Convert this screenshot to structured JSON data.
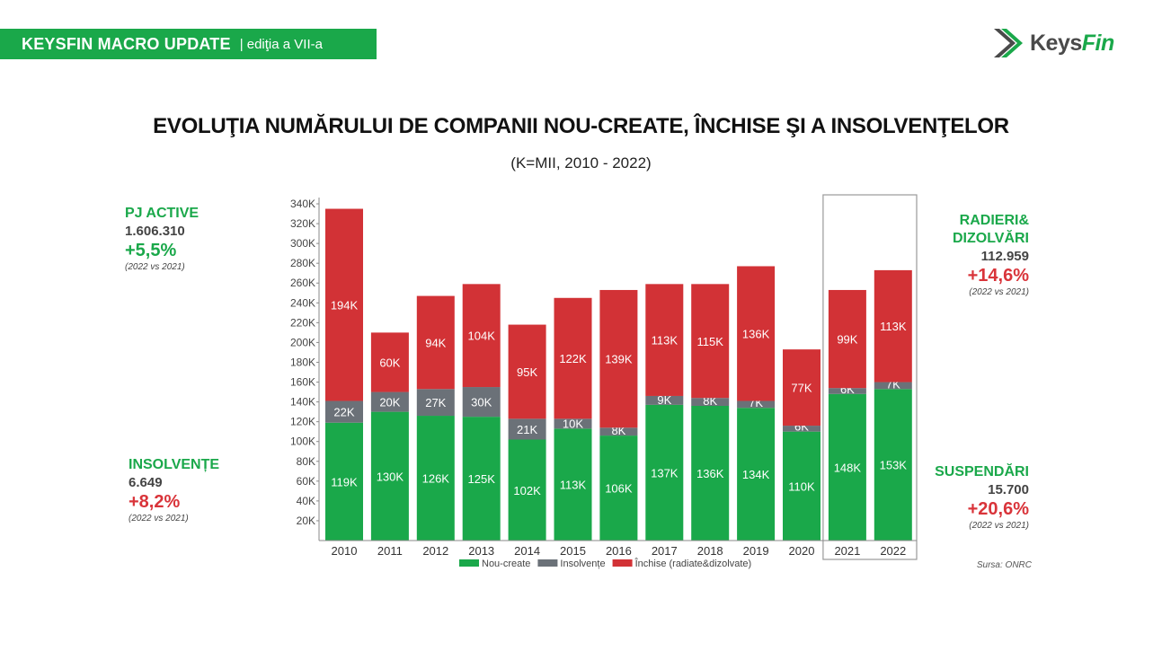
{
  "banner": {
    "title": "KEYSFIN MACRO UPDATE",
    "subtitle": "| ediţia a VII-a"
  },
  "logo": {
    "text_part1": "Keys",
    "text_part2": "Fin"
  },
  "colors": {
    "green": "#1aa84a",
    "gray": "#6b7178",
    "red": "#d23236"
  },
  "stats": {
    "pj_active": {
      "label": "PJ ACTIVE",
      "value": "1.606.310",
      "change": "+5,5%",
      "comparison": "(2022 vs 2021)"
    },
    "insolvente": {
      "label": "INSOLVENȚE",
      "value": "6.649",
      "change": "+8,2%",
      "comparison": "(2022 vs 2021)"
    },
    "radieri": {
      "label_line1": "RADIERI&",
      "label_line2": "DIZOLVĂRI",
      "value": "112.959",
      "change": "+14,6%",
      "comparison": "(2022 vs 2021)"
    },
    "suspendari": {
      "label": "SUSPENDĂRI",
      "value": "15.700",
      "change": "+20,6%",
      "comparison": "(2022 vs 2021)"
    }
  },
  "source": "Sursa: ONRC",
  "chart_data": {
    "type": "bar",
    "stacked": true,
    "title": "EVOLUŢIA NUMĂRULUI DE COMPANII NOU-CREATE, ÎNCHISE ŞI A INSOLVENŢELOR",
    "subtitle": "(K=MII, 2010 - 2022)",
    "categories": [
      "2010",
      "2011",
      "2012",
      "2013",
      "2014",
      "2015",
      "2016",
      "2017",
      "2018",
      "2019",
      "2020",
      "2021",
      "2022"
    ],
    "ylim": [
      0,
      340000
    ],
    "yticks": [
      20000,
      40000,
      60000,
      80000,
      100000,
      120000,
      140000,
      160000,
      180000,
      200000,
      220000,
      240000,
      260000,
      280000,
      300000,
      320000,
      340000
    ],
    "ytick_labels": [
      "20K",
      "40K",
      "60K",
      "80K",
      "100K",
      "120K",
      "140K",
      "160K",
      "180K",
      "200K",
      "220K",
      "240K",
      "260K",
      "280K",
      "300K",
      "320K",
      "340K"
    ],
    "highlighted_categories": [
      "2021",
      "2022"
    ],
    "legend_position": "bottom",
    "series": [
      {
        "name": "Nou-create",
        "color": "#1aa84a",
        "values": [
          119000,
          130000,
          126000,
          125000,
          102000,
          113000,
          106000,
          137000,
          136000,
          134000,
          110000,
          148000,
          153000
        ],
        "labels": [
          "119K",
          "130K",
          "126K",
          "125K",
          "102K",
          "113K",
          "106K",
          "137K",
          "136K",
          "134K",
          "110K",
          "148K",
          "153K"
        ]
      },
      {
        "name": "Insolvențe",
        "color": "#6b7178",
        "values": [
          22000,
          20000,
          27000,
          30000,
          21000,
          10000,
          8000,
          9000,
          8000,
          7000,
          6000,
          6000,
          7000
        ],
        "labels": [
          "22K",
          "20K",
          "27K",
          "30K",
          "21K",
          "10K",
          "8K",
          "9K",
          "8K",
          "7K",
          "6K",
          "6K",
          "7K"
        ]
      },
      {
        "name": "Închise (radiate&dizolvate)",
        "color": "#d23236",
        "values": [
          194000,
          60000,
          94000,
          104000,
          95000,
          122000,
          139000,
          113000,
          115000,
          136000,
          77000,
          99000,
          113000
        ],
        "labels": [
          "194K",
          "60K",
          "94K",
          "104K",
          "95K",
          "122K",
          "139K",
          "113K",
          "115K",
          "136K",
          "77K",
          "99K",
          "113K"
        ]
      }
    ]
  }
}
